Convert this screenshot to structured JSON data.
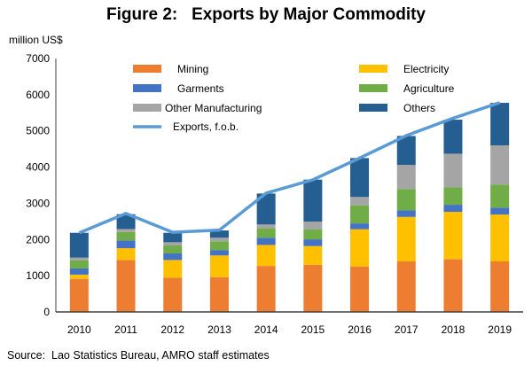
{
  "chart_data": {
    "type": "bar",
    "stacked": true,
    "title": "Figure 2:   Exports by Major Commodity",
    "ylabel": "million US$",
    "ylim": [
      0,
      7000
    ],
    "yticks": [
      0,
      1000,
      2000,
      3000,
      4000,
      5000,
      6000,
      7000
    ],
    "grid": false,
    "legend": "inside top",
    "categories": [
      "2010",
      "2011",
      "2012",
      "2013",
      "2014",
      "2015",
      "2016",
      "2017",
      "2018",
      "2019"
    ],
    "series": [
      {
        "name": "Mining",
        "color": "#ED7D31",
        "values": [
          910,
          1435,
          945,
          960,
          1270,
          1300,
          1255,
          1395,
          1460,
          1395
        ]
      },
      {
        "name": "Electricity",
        "color": "#FFC000",
        "values": [
          120,
          325,
          490,
          600,
          580,
          520,
          1030,
          1230,
          1305,
          1295
        ]
      },
      {
        "name": "Garments",
        "color": "#4472C4",
        "values": [
          170,
          215,
          180,
          150,
          200,
          185,
          160,
          180,
          195,
          190
        ]
      },
      {
        "name": "Agriculture",
        "color": "#70AD47",
        "values": [
          220,
          235,
          220,
          240,
          260,
          280,
          500,
          590,
          480,
          635
        ]
      },
      {
        "name": "Other Manufacturing",
        "color": "#A5A5A5",
        "values": [
          80,
          80,
          90,
          100,
          105,
          210,
          230,
          665,
          930,
          1085
        ]
      },
      {
        "name": "Others",
        "color": "#255E91",
        "values": [
          685,
          410,
          260,
          200,
          855,
          1160,
          1075,
          800,
          940,
          1175
        ]
      }
    ],
    "line": {
      "name": "Exports, f.o.b.",
      "color": "#5B9BD5",
      "values": [
        2185,
        2720,
        2200,
        2260,
        3280,
        3650,
        4250,
        4870,
        5350,
        5780
      ]
    }
  },
  "source": "Source:  Lao Statistics Bureau, AMRO staff estimates"
}
